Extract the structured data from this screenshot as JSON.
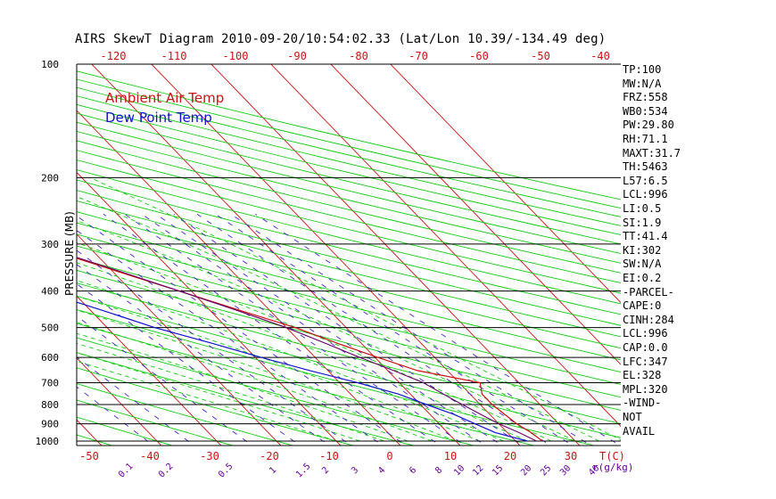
{
  "title": "AIRS SkewT Diagram 2010-09-20/10:54:02.33 (Lat/Lon 10.39/-134.49 deg)",
  "legend": [
    {
      "label": "Ambient Air Temp",
      "color": "#cc1111"
    },
    {
      "label": "Dew Point Temp",
      "color": "#1111cc"
    }
  ],
  "colors": {
    "isotherm": "#cc1111",
    "dry_adiabat": "#11cc11",
    "moist_adiabat": "#11cc11",
    "mixing_ratio": "#4422cc",
    "temperature": "#cc1111",
    "dewpoint": "#1111cc",
    "parcel": "#660066",
    "isobar": "#000000",
    "axis_top_labels": "#cc1111",
    "axis_bottom_labels": "#cc1111",
    "mixing_labels": "#660099"
  },
  "indices": [
    "TP:100",
    "MW:N/A",
    "FRZ:558",
    "WB0:534",
    "PW:29.80",
    "RH:71.1",
    "MAXT:31.7",
    "TH:5463",
    "L57:6.5",
    "LCL:996",
    "LI:0.5",
    "SI:1.9",
    "TT:41.4",
    "KI:302",
    "SW:N/A",
    "EI:0.2",
    "-PARCEL-",
    "CAPE:0",
    "CINH:284",
    "LCL:996",
    "CAP:0.0",
    "LFC:347",
    "EL:328",
    "MPL:320",
    "-WIND-",
    "NOT",
    "AVAIL"
  ],
  "chart_data": {
    "type": "line",
    "title": "AIRS SkewT Diagram 2010-09-20/10:54:02.33 (Lat/Lon 10.39/-134.49 deg)",
    "ylabel": "PRESSURE (MB)",
    "xlabel": "T(C)",
    "mixing_ratio_unit": "r(g/kg)",
    "ylim": [
      1000,
      100
    ],
    "y_scale": "log",
    "pressure_ticks": [
      100,
      200,
      300,
      400,
      500,
      600,
      700,
      800,
      900,
      1000
    ],
    "top_temp_ticks": [
      -120,
      -110,
      -100,
      -90,
      -80,
      -70,
      -60,
      -50,
      -40
    ],
    "bottom_temp_ticks": [
      -50,
      -40,
      -30,
      -20,
      -10,
      0,
      10,
      20,
      30
    ],
    "bottom_temp_label": "T(C)",
    "mixing_ratio_ticks": [
      "0.1",
      "0.2",
      "0.5",
      "1",
      "1.5",
      "2",
      "3",
      "4",
      "6",
      "8",
      "10",
      "12",
      "15",
      "20",
      "25",
      "30",
      "40"
    ],
    "grid": true,
    "legend_position": "top-left",
    "series": [
      {
        "name": "Ambient Air Temp",
        "points": [
          [
            1000,
            24.5
          ],
          [
            950,
            24
          ],
          [
            900,
            23
          ],
          [
            850,
            22.5
          ],
          [
            800,
            22
          ],
          [
            750,
            22
          ],
          [
            700,
            23.5
          ],
          [
            650,
            15
          ],
          [
            600,
            10.5
          ],
          [
            550,
            6
          ],
          [
            500,
            1.5
          ],
          [
            450,
            -5
          ],
          [
            400,
            -12
          ],
          [
            350,
            -20
          ],
          [
            300,
            -29
          ],
          [
            250,
            -40
          ],
          [
            200,
            -53
          ],
          [
            170,
            -64
          ],
          [
            150,
            -78
          ],
          [
            120,
            -80
          ],
          [
            100,
            -84
          ]
        ]
      },
      {
        "name": "Dew Point Temp",
        "points": [
          [
            1000,
            22
          ],
          [
            950,
            18
          ],
          [
            900,
            16
          ],
          [
            850,
            14
          ],
          [
            800,
            11
          ],
          [
            750,
            8
          ],
          [
            700,
            3
          ],
          [
            650,
            -3
          ],
          [
            600,
            -9
          ],
          [
            550,
            -15
          ],
          [
            500,
            -22
          ],
          [
            450,
            -28
          ],
          [
            400,
            -35
          ],
          [
            350,
            -42
          ],
          [
            300,
            -52
          ],
          [
            250,
            -60
          ],
          [
            200,
            -70
          ],
          [
            170,
            -74
          ],
          [
            150,
            -86
          ],
          [
            120,
            -92
          ],
          [
            100,
            -95
          ]
        ]
      },
      {
        "name": "Parcel",
        "points": [
          [
            1000,
            23.5
          ],
          [
            950,
            22
          ],
          [
            900,
            20
          ],
          [
            850,
            18.5
          ],
          [
            800,
            17
          ],
          [
            750,
            15.5
          ],
          [
            700,
            14
          ],
          [
            650,
            11
          ],
          [
            600,
            7.5
          ],
          [
            550,
            4
          ],
          [
            500,
            0
          ],
          [
            450,
            -5.5
          ],
          [
            400,
            -12
          ],
          [
            350,
            -19.5
          ],
          [
            300,
            -28.5
          ],
          [
            250,
            -40
          ],
          [
            200,
            -55
          ],
          [
            170,
            -66
          ],
          [
            150,
            -74
          ],
          [
            120,
            -88
          ],
          [
            100,
            -100
          ]
        ]
      }
    ]
  }
}
